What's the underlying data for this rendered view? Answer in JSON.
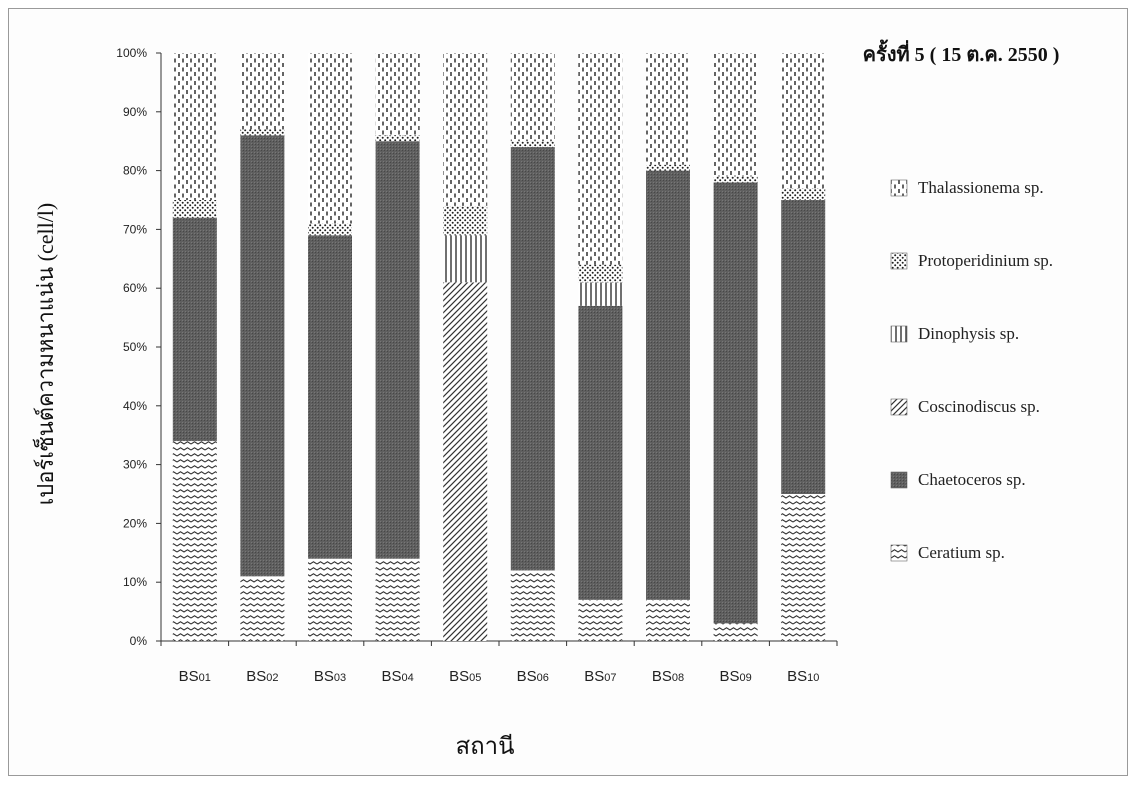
{
  "chart_data": {
    "type": "bar",
    "stacked": true,
    "percent": true,
    "title": "ครั้งที่ 5 ( 15 ต.ค. 2550 )",
    "xlabel": "สถานี",
    "ylabel": "เปอร์เซ็นต์ความหนาแน่น (cell/l)",
    "ylim": [
      0,
      100
    ],
    "yticks": [
      "0%",
      "10%",
      "20%",
      "30%",
      "40%",
      "50%",
      "60%",
      "70%",
      "80%",
      "90%",
      "100%"
    ],
    "categories": [
      "BS01",
      "BS02",
      "BS03",
      "BS04",
      "BS05",
      "BS06",
      "BS07",
      "BS08",
      "BS09",
      "BS10"
    ],
    "category_labels": [
      {
        "main": "BS",
        "sub": "01"
      },
      {
        "main": "BS",
        "sub": "02"
      },
      {
        "main": "BS",
        "sub": "03"
      },
      {
        "main": "BS",
        "sub": "04"
      },
      {
        "main": "BS",
        "sub": "05"
      },
      {
        "main": "BS",
        "sub": "06"
      },
      {
        "main": "BS",
        "sub": "07"
      },
      {
        "main": "BS",
        "sub": "08"
      },
      {
        "main": "BS",
        "sub": "09"
      },
      {
        "main": "BS",
        "sub": "10"
      }
    ],
    "series": [
      {
        "name": "Ceratium sp.",
        "pattern": "wave",
        "values": [
          34,
          11,
          14,
          14,
          0,
          12,
          7,
          7,
          3,
          25
        ]
      },
      {
        "name": "Chaetoceros sp.",
        "pattern": "dark",
        "values": [
          38,
          75,
          55,
          71,
          0,
          72,
          50,
          73,
          75,
          50
        ]
      },
      {
        "name": "Coscinodiscus sp.",
        "pattern": "diagonal",
        "values": [
          0,
          0,
          0,
          0,
          61,
          0,
          0,
          0,
          0,
          0
        ]
      },
      {
        "name": "Dinophysis sp.",
        "pattern": "vertical",
        "values": [
          0,
          0,
          0,
          0,
          8,
          0,
          4,
          0,
          0,
          0
        ]
      },
      {
        "name": "Protoperidinium sp.",
        "pattern": "dots",
        "values": [
          3,
          1,
          2,
          1,
          5,
          1,
          3,
          1,
          1,
          2
        ]
      },
      {
        "name": "Thalassionema sp.",
        "pattern": "dashes",
        "values": [
          25,
          13,
          29,
          14,
          26,
          15,
          36,
          19,
          21,
          23
        ]
      }
    ],
    "legend_order": [
      "Thalassionema sp.",
      "Protoperidinium sp.",
      "Dinophysis sp.",
      "Coscinodiscus sp.",
      "Chaetoceros sp.",
      "Ceratium sp."
    ],
    "legend_position": "right",
    "grid": false,
    "colors": {
      "dark_fill": "#5e5e5e",
      "ink": "#333333"
    }
  }
}
